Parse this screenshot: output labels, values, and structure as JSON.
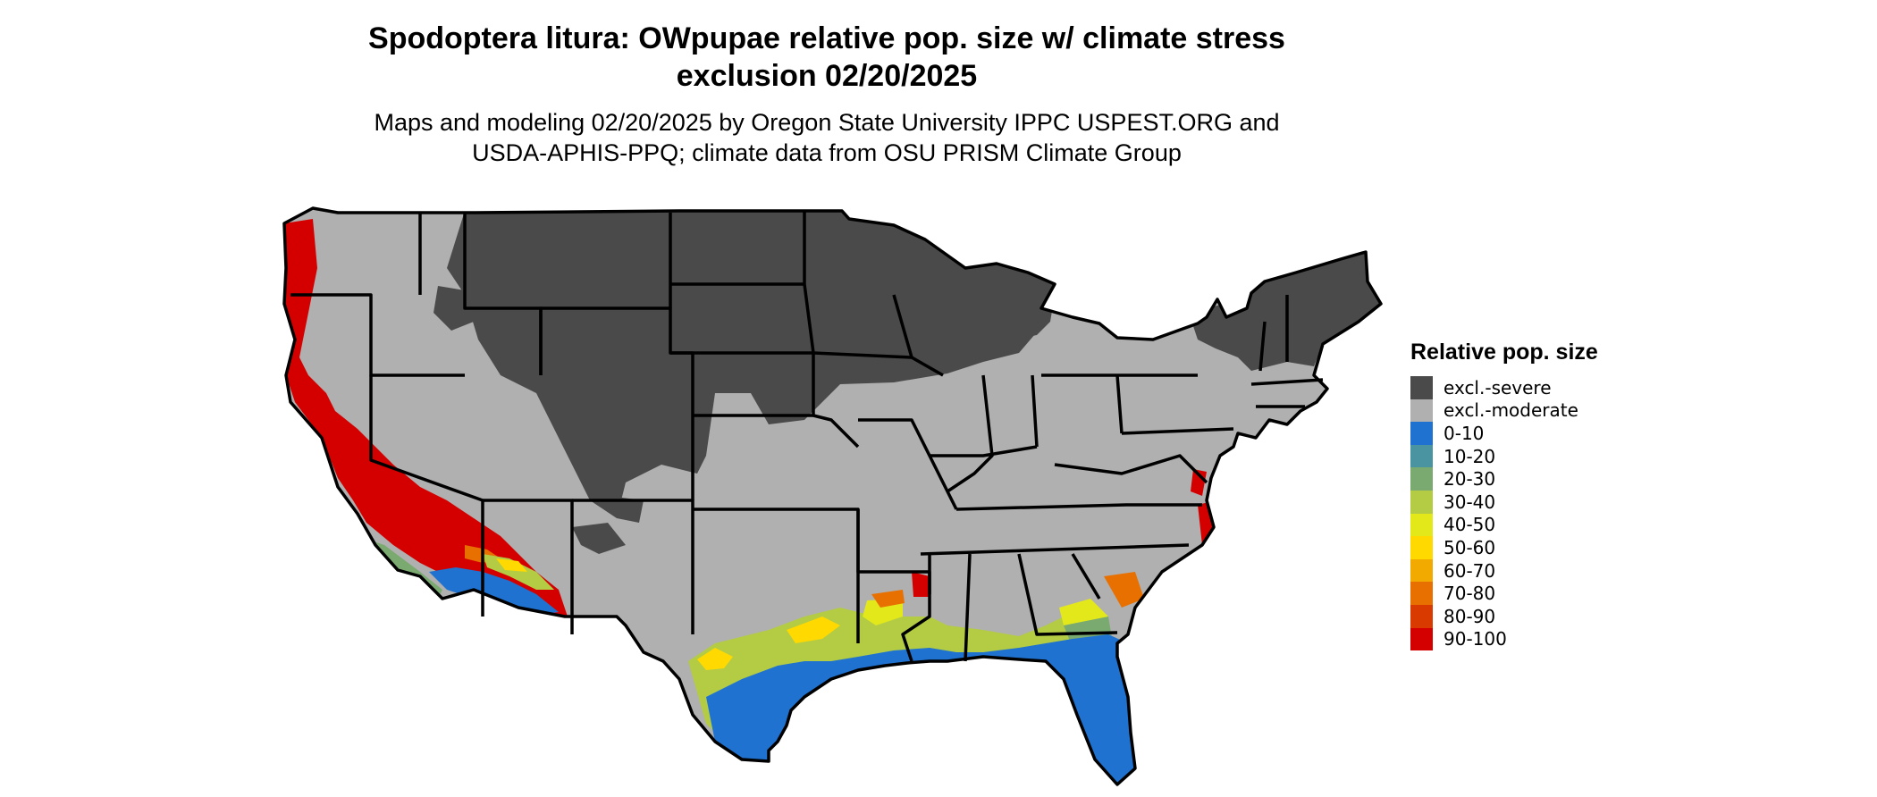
{
  "title": {
    "line1": "Spodoptera litura: OWpupae relative pop. size w/ climate stress",
    "line2": "exclusion 02/20/2025"
  },
  "subtitle": {
    "line1": "Maps and modeling 02/20/2025 by Oregon State University IPPC USPEST.ORG and",
    "line2": "USDA-APHIS-PPQ; climate data from OSU PRISM Climate Group"
  },
  "legend": {
    "title": "Relative pop. size",
    "items": [
      {
        "label": "excl.-severe",
        "color": "#4a4a4a"
      },
      {
        "label": "excl.-moderate",
        "color": "#b0b0b0"
      },
      {
        "label": "0-10",
        "color": "#1f72cf"
      },
      {
        "label": "10-20",
        "color": "#4a93a0"
      },
      {
        "label": "20-30",
        "color": "#7aaa70"
      },
      {
        "label": "30-40",
        "color": "#b3cc44"
      },
      {
        "label": "40-50",
        "color": "#e2e81a"
      },
      {
        "label": "50-60",
        "color": "#ffd900"
      },
      {
        "label": "60-70",
        "color": "#f2a900"
      },
      {
        "label": "70-80",
        "color": "#e87000"
      },
      {
        "label": "80-90",
        "color": "#d83a00"
      },
      {
        "label": "90-100",
        "color": "#d40000"
      }
    ]
  }
}
